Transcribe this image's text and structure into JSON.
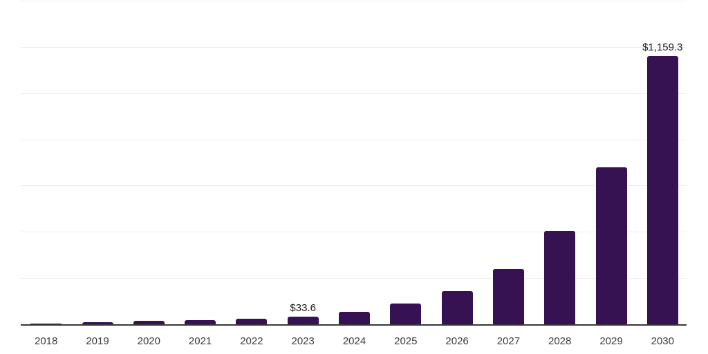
{
  "chart_data": {
    "type": "bar",
    "title": "",
    "xlabel": "",
    "ylabel": "",
    "categories": [
      "2018",
      "2019",
      "2020",
      "2021",
      "2022",
      "2023",
      "2024",
      "2025",
      "2026",
      "2027",
      "2028",
      "2029",
      "2030"
    ],
    "values": [
      2.4,
      8.0,
      14.0,
      17.4,
      24.0,
      33.6,
      52.8,
      88.5,
      145.0,
      239.0,
      404.0,
      678.3,
      1159.3
    ],
    "points": [
      {
        "year": "2018",
        "value": 2.4,
        "label": null
      },
      {
        "year": "2019",
        "value": 8.0,
        "label": null
      },
      {
        "year": "2020",
        "value": 14.0,
        "label": null
      },
      {
        "year": "2021",
        "value": 17.4,
        "label": null
      },
      {
        "year": "2022",
        "value": 24.0,
        "label": null
      },
      {
        "year": "2023",
        "value": 33.6,
        "label": "$33.6"
      },
      {
        "year": "2024",
        "value": 52.8,
        "label": null
      },
      {
        "year": "2025",
        "value": 88.5,
        "label": null
      },
      {
        "year": "2026",
        "value": 145.0,
        "label": null
      },
      {
        "year": "2027",
        "value": 239.0,
        "label": null
      },
      {
        "year": "2028",
        "value": 404.0,
        "label": null
      },
      {
        "year": "2029",
        "value": 678.3,
        "label": null
      },
      {
        "year": "2030",
        "value": 1159.3,
        "label": "$1,159.3"
      }
    ],
    "ylim": [
      0,
      1400
    ],
    "gridline_interval": 200,
    "grid": true,
    "legend": false,
    "y_tick_labels_visible": false,
    "colors": {
      "bar": "#361253",
      "gridline": "#ececec",
      "axis_line": "#383838",
      "data_label_text": "#1c1c1c",
      "tick_label_text": "#3b3b3b",
      "background": "#ffffff"
    }
  }
}
